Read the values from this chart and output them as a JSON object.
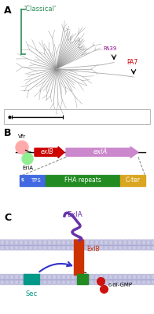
{
  "bg_color": "#ffffff",
  "panel_a_label": "A",
  "panel_b_label": "B",
  "panel_c_label": "C",
  "classical_label": "'Classical'",
  "pa39_label": "PA39",
  "pa7_label": "PA7",
  "vfr_label": "Vfr",
  "erla_label": "ErlA",
  "exib_label": "exlB",
  "exia_label": "exlA",
  "tps_label": "TPS",
  "fha_label": "FHA repeats",
  "cter_label": "C-ter",
  "exia_prot_label": "ExlA",
  "exib_prot_label": "ExlB",
  "sec_label": "Sec",
  "cdgmp_label": "c-di-GMP",
  "question_label": "?",
  "color_classical": "#2e8b57",
  "color_pa39": "#8b008b",
  "color_pa7": "#cc0000",
  "color_vfr": "#ffaaaa",
  "color_erla": "#90ee90",
  "color_exib_arrow": "#cc0000",
  "color_exia_arrow": "#cc88cc",
  "color_tps": "#4169e1",
  "color_fha": "#228b22",
  "color_cter": "#daa520",
  "color_exia_prot": "#6633aa",
  "color_exib_prot": "#cc3300",
  "color_sec": "#009988",
  "color_cdgmp": "#cc1111",
  "color_membrane_outer": "#9999cc",
  "color_membrane_inner": "#9999cc",
  "color_ques_box": "#228b22"
}
